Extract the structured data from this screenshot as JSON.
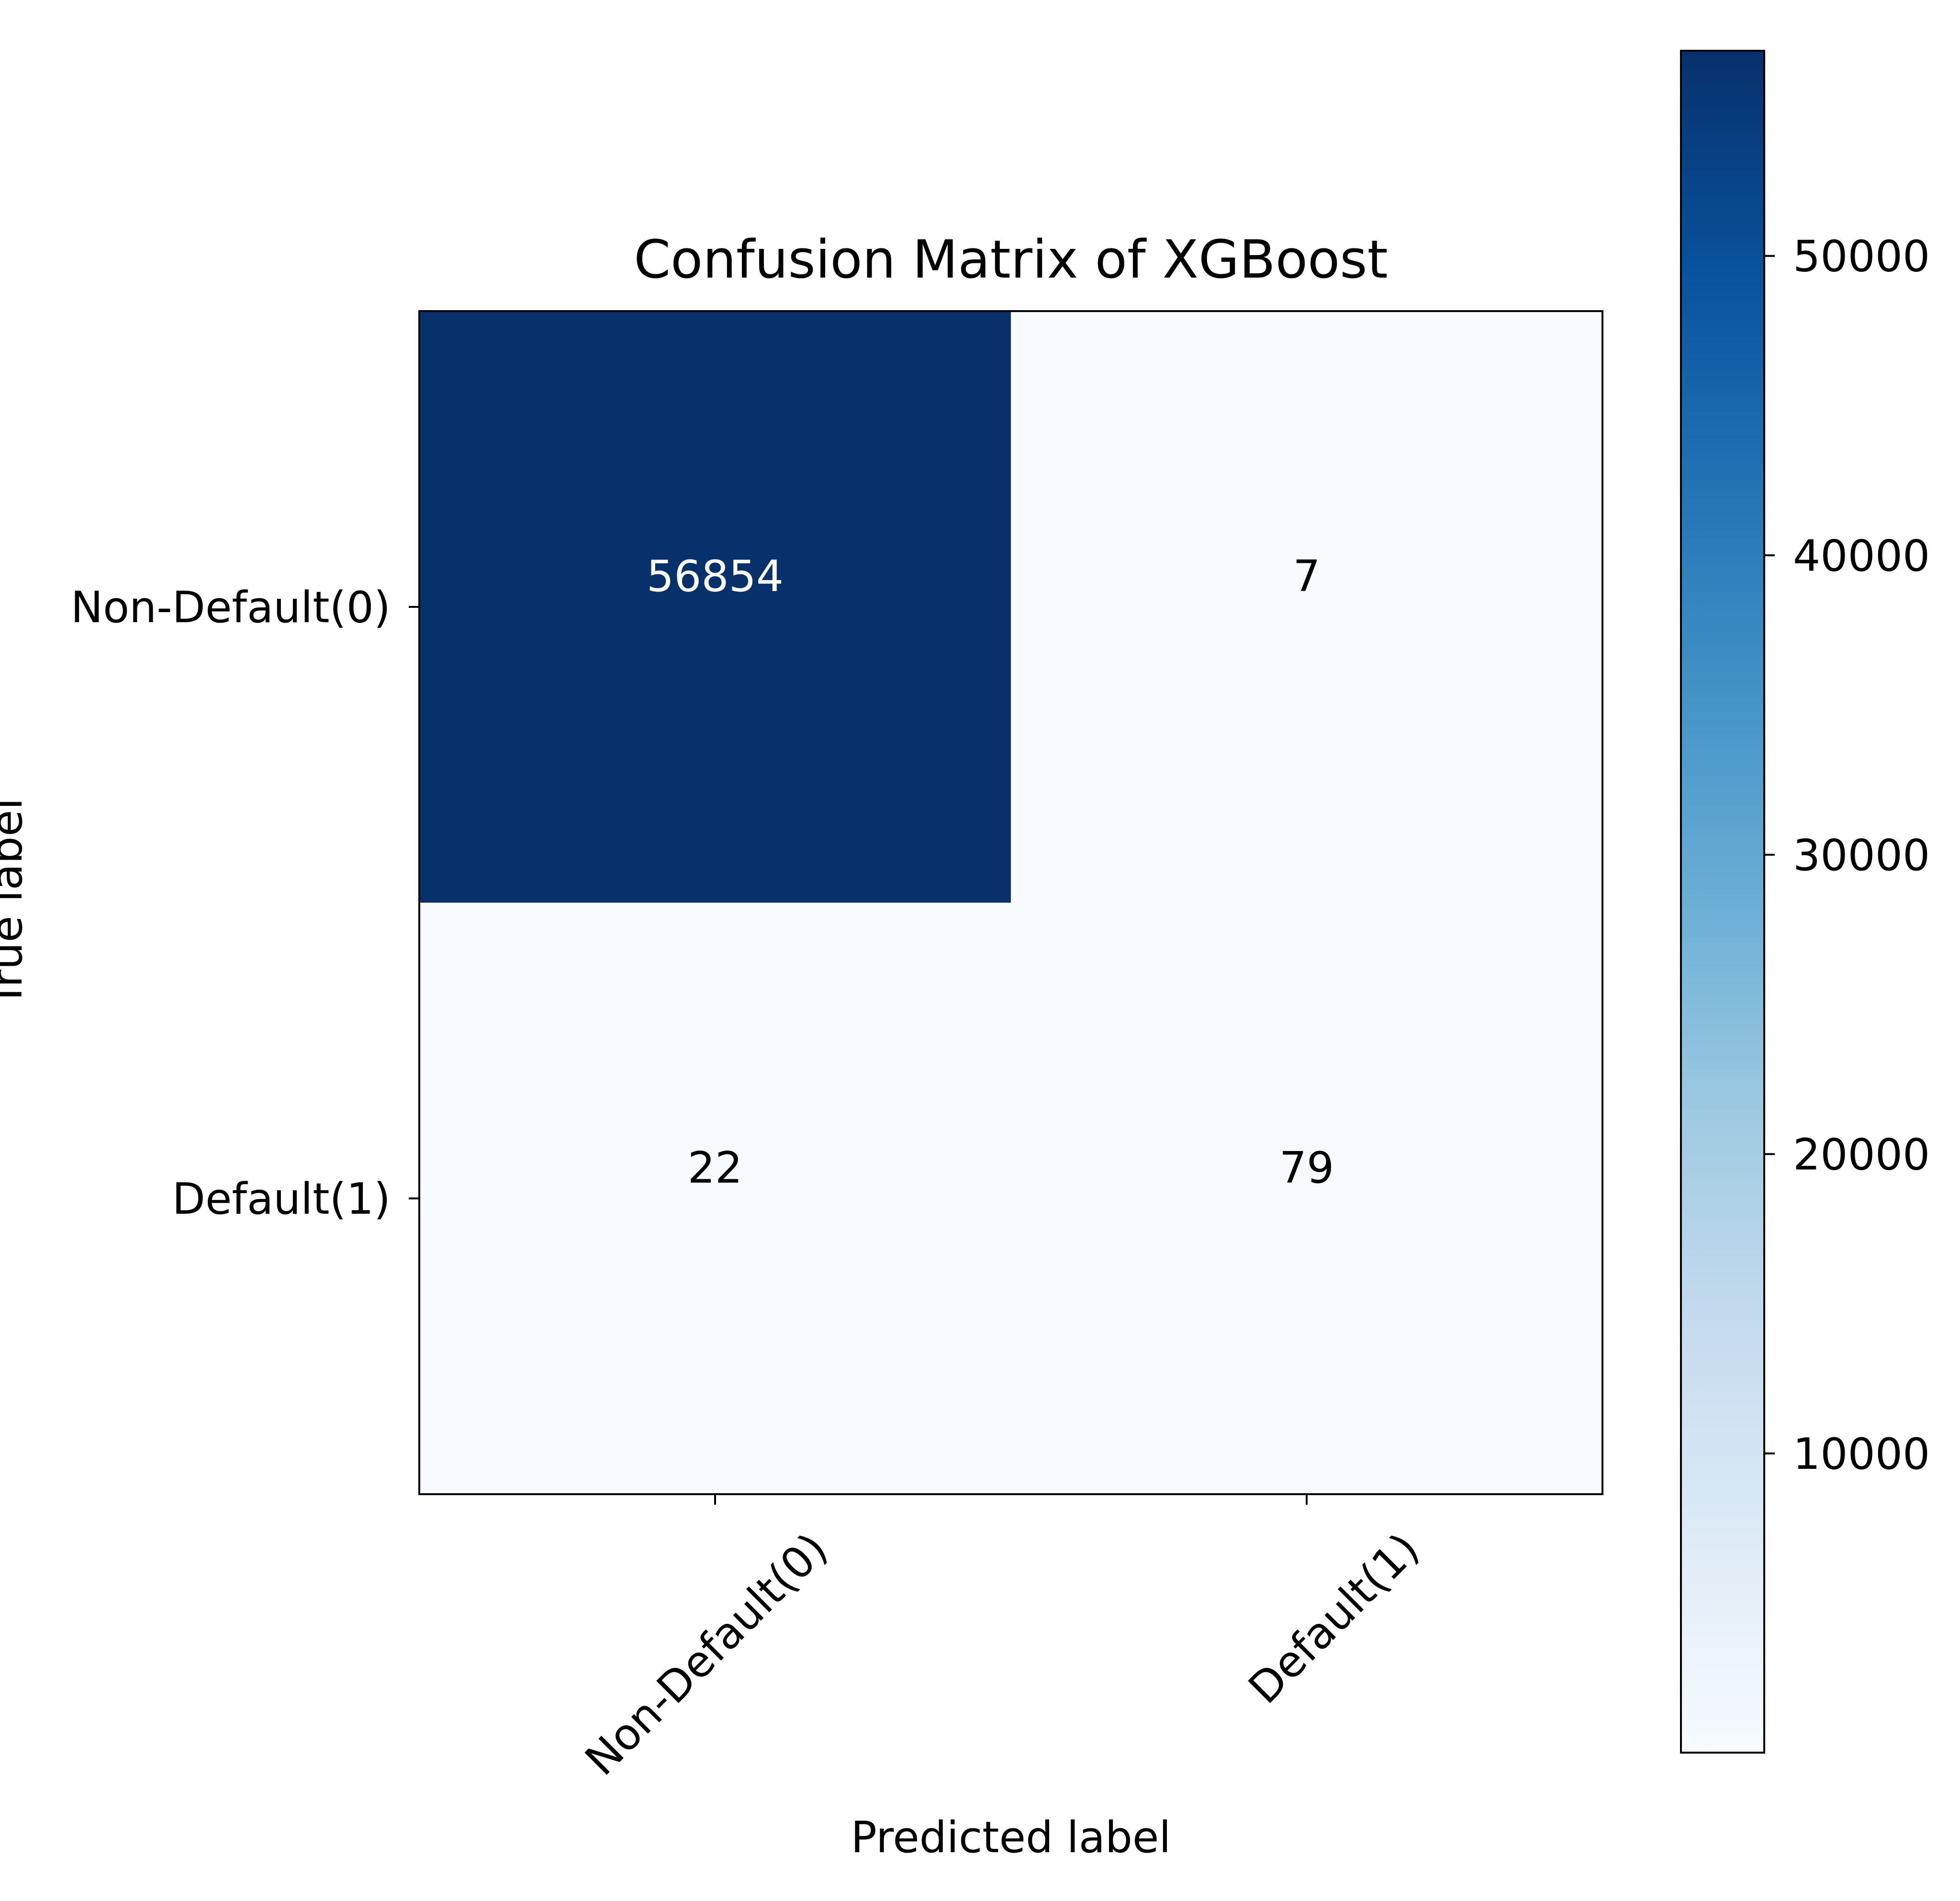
{
  "chart_data": {
    "type": "heatmap",
    "title": "Confusion Matrix of XGBoost",
    "xlabel": "Predicted label",
    "ylabel": "True label",
    "x_categories": [
      "Non-Default(0)",
      "Default(1)"
    ],
    "y_categories": [
      "Non-Default(0)",
      "Default(1)"
    ],
    "values": [
      [
        56854,
        7
      ],
      [
        22,
        79
      ]
    ],
    "colormap": "Blues",
    "colorbar": {
      "range": [
        7,
        56854
      ],
      "ticks": [
        10000,
        20000,
        30000,
        40000,
        50000
      ],
      "tick_labels": [
        "10000",
        "20000",
        "30000",
        "40000",
        "50000"
      ]
    },
    "grid": false,
    "colors": {
      "cmap_light": "#f7fbff",
      "cmap_dark": "#08306b",
      "text_on_dark": "#ffffff",
      "text_on_light": "#000000"
    }
  }
}
